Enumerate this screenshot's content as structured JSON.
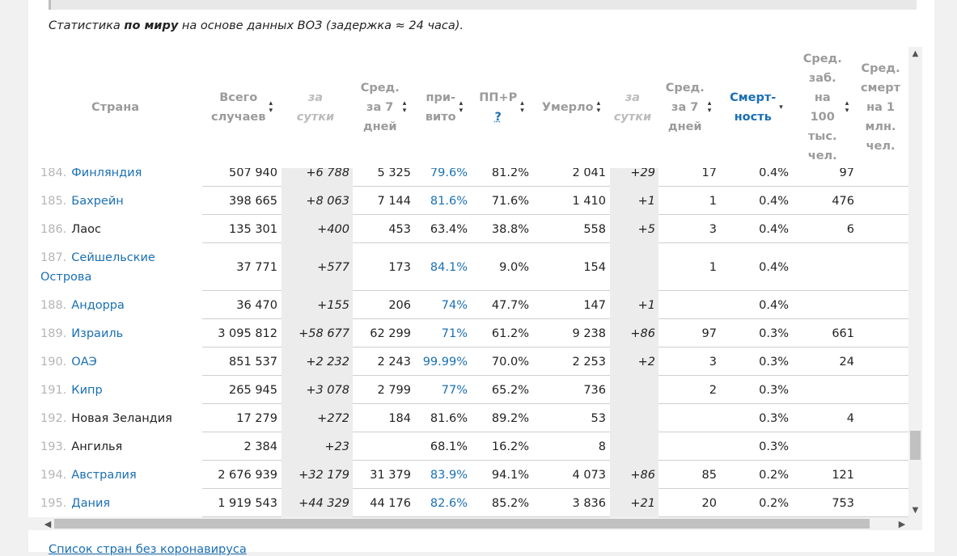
{
  "intro": {
    "prefix": "Статистика ",
    "bold": "по миру",
    "suffix": " на основе данных ВОЗ (задержка ≈ 24 часа)."
  },
  "headers": {
    "country": "Страна",
    "total": [
      "Всего",
      "случаев"
    ],
    "per_day": [
      "за",
      "сутки"
    ],
    "avg7": [
      "Сред.",
      "за 7",
      "дней"
    ],
    "vacc": [
      "при-",
      "вито"
    ],
    "pp": "ПП+Р",
    "pp_help": "?",
    "deaths": "Умерло",
    "deaths_day": [
      "за",
      "сутки"
    ],
    "deaths_avg7": [
      "Сред.",
      "за 7",
      "дней"
    ],
    "mortality": [
      "Смерт-",
      "ность"
    ],
    "per100k": [
      "Сред.",
      "заб.",
      "на",
      "100",
      "тыс.",
      "чел."
    ],
    "per1m": [
      "Сред.",
      "смерт",
      "на 1",
      "млн.",
      "чел."
    ]
  },
  "rows": [
    {
      "num": "184.",
      "name": "Финляндия",
      "link": true,
      "total": "507 940",
      "day": "+6 788",
      "avg7": "5 325",
      "vacc": "79.6%",
      "vacc_link": true,
      "pp": "81.2%",
      "deaths": "2 041",
      "deaths_day": "+29",
      "deaths_avg7": "17",
      "mort": "0.4%",
      "p100k": "97"
    },
    {
      "num": "185.",
      "name": "Бахрейн",
      "link": true,
      "total": "398 665",
      "day": "+8 063",
      "avg7": "7 144",
      "vacc": "81.6%",
      "vacc_link": true,
      "pp": "71.6%",
      "deaths": "1 410",
      "deaths_day": "+1",
      "deaths_avg7": "1",
      "mort": "0.4%",
      "p100k": "476"
    },
    {
      "num": "186.",
      "name": "Лаос",
      "link": false,
      "total": "135 301",
      "day": "+400",
      "avg7": "453",
      "vacc": "63.4%",
      "vacc_link": false,
      "pp": "38.8%",
      "deaths": "558",
      "deaths_day": "+5",
      "deaths_avg7": "3",
      "mort": "0.4%",
      "p100k": "6"
    },
    {
      "num": "187.",
      "name": "Сейшельские Острова",
      "link": true,
      "total": "37 771",
      "day": "+577",
      "avg7": "173",
      "vacc": "84.1%",
      "vacc_link": true,
      "pp": "9.0%",
      "deaths": "154",
      "deaths_day": "",
      "deaths_avg7": "1",
      "mort": "0.4%",
      "p100k": ""
    },
    {
      "num": "188.",
      "name": "Андорра",
      "link": true,
      "total": "36 470",
      "day": "+155",
      "avg7": "206",
      "vacc": "74%",
      "vacc_link": true,
      "pp": "47.7%",
      "deaths": "147",
      "deaths_day": "+1",
      "deaths_avg7": "",
      "mort": "0.4%",
      "p100k": ""
    },
    {
      "num": "189.",
      "name": "Израиль",
      "link": true,
      "total": "3 095 812",
      "day": "+58 677",
      "avg7": "62 299",
      "vacc": "71%",
      "vacc_link": true,
      "pp": "61.2%",
      "deaths": "9 238",
      "deaths_day": "+86",
      "deaths_avg7": "97",
      "mort": "0.3%",
      "p100k": "661"
    },
    {
      "num": "190.",
      "name": "ОАЭ",
      "link": true,
      "total": "851 537",
      "day": "+2 232",
      "avg7": "2 243",
      "vacc": "99.99%",
      "vacc_link": true,
      "pp": "70.0%",
      "deaths": "2 253",
      "deaths_day": "+2",
      "deaths_avg7": "3",
      "mort": "0.3%",
      "p100k": "24"
    },
    {
      "num": "191.",
      "name": "Кипр",
      "link": true,
      "total": "265 945",
      "day": "+3 078",
      "avg7": "2 799",
      "vacc": "77%",
      "vacc_link": true,
      "pp": "65.2%",
      "deaths": "736",
      "deaths_day": "",
      "deaths_avg7": "2",
      "mort": "0.3%",
      "p100k": ""
    },
    {
      "num": "192.",
      "name": "Новая Зеландия",
      "link": false,
      "total": "17 279",
      "day": "+272",
      "avg7": "184",
      "vacc": "81.6%",
      "vacc_link": false,
      "pp": "89.2%",
      "deaths": "53",
      "deaths_day": "",
      "deaths_avg7": "",
      "mort": "0.3%",
      "p100k": "4"
    },
    {
      "num": "193.",
      "name": "Ангилья",
      "link": false,
      "total": "2 384",
      "day": "+23",
      "avg7": "",
      "vacc": "68.1%",
      "vacc_link": false,
      "pp": "16.2%",
      "deaths": "8",
      "deaths_day": "",
      "deaths_avg7": "",
      "mort": "0.3%",
      "p100k": ""
    },
    {
      "num": "194.",
      "name": "Австралия",
      "link": true,
      "total": "2 676 939",
      "day": "+32 179",
      "avg7": "31 379",
      "vacc": "83.9%",
      "vacc_link": true,
      "pp": "94.1%",
      "deaths": "4 073",
      "deaths_day": "+86",
      "deaths_avg7": "85",
      "mort": "0.2%",
      "p100k": "121"
    },
    {
      "num": "195.",
      "name": "Дания",
      "link": true,
      "total": "1 919 543",
      "day": "+44 329",
      "avg7": "44 176",
      "vacc": "82.6%",
      "vacc_link": true,
      "pp": "85.2%",
      "deaths": "3 836",
      "deaths_day": "+21",
      "deaths_avg7": "20",
      "mort": "0.2%",
      "p100k": "753"
    }
  ],
  "footer_link": "Список стран без коронавируса",
  "icons": {
    "sort": "sort-arrows-icon",
    "sort_desc": "sort-desc-icon",
    "scroll_up": "arrow-up-icon",
    "scroll_down": "arrow-down-icon",
    "scroll_left": "arrow-left-icon",
    "scroll_right": "arrow-right-icon"
  },
  "colors": {
    "link": "#1a6fb4",
    "shade": "#ececec",
    "muted": "#9b9b9b"
  }
}
